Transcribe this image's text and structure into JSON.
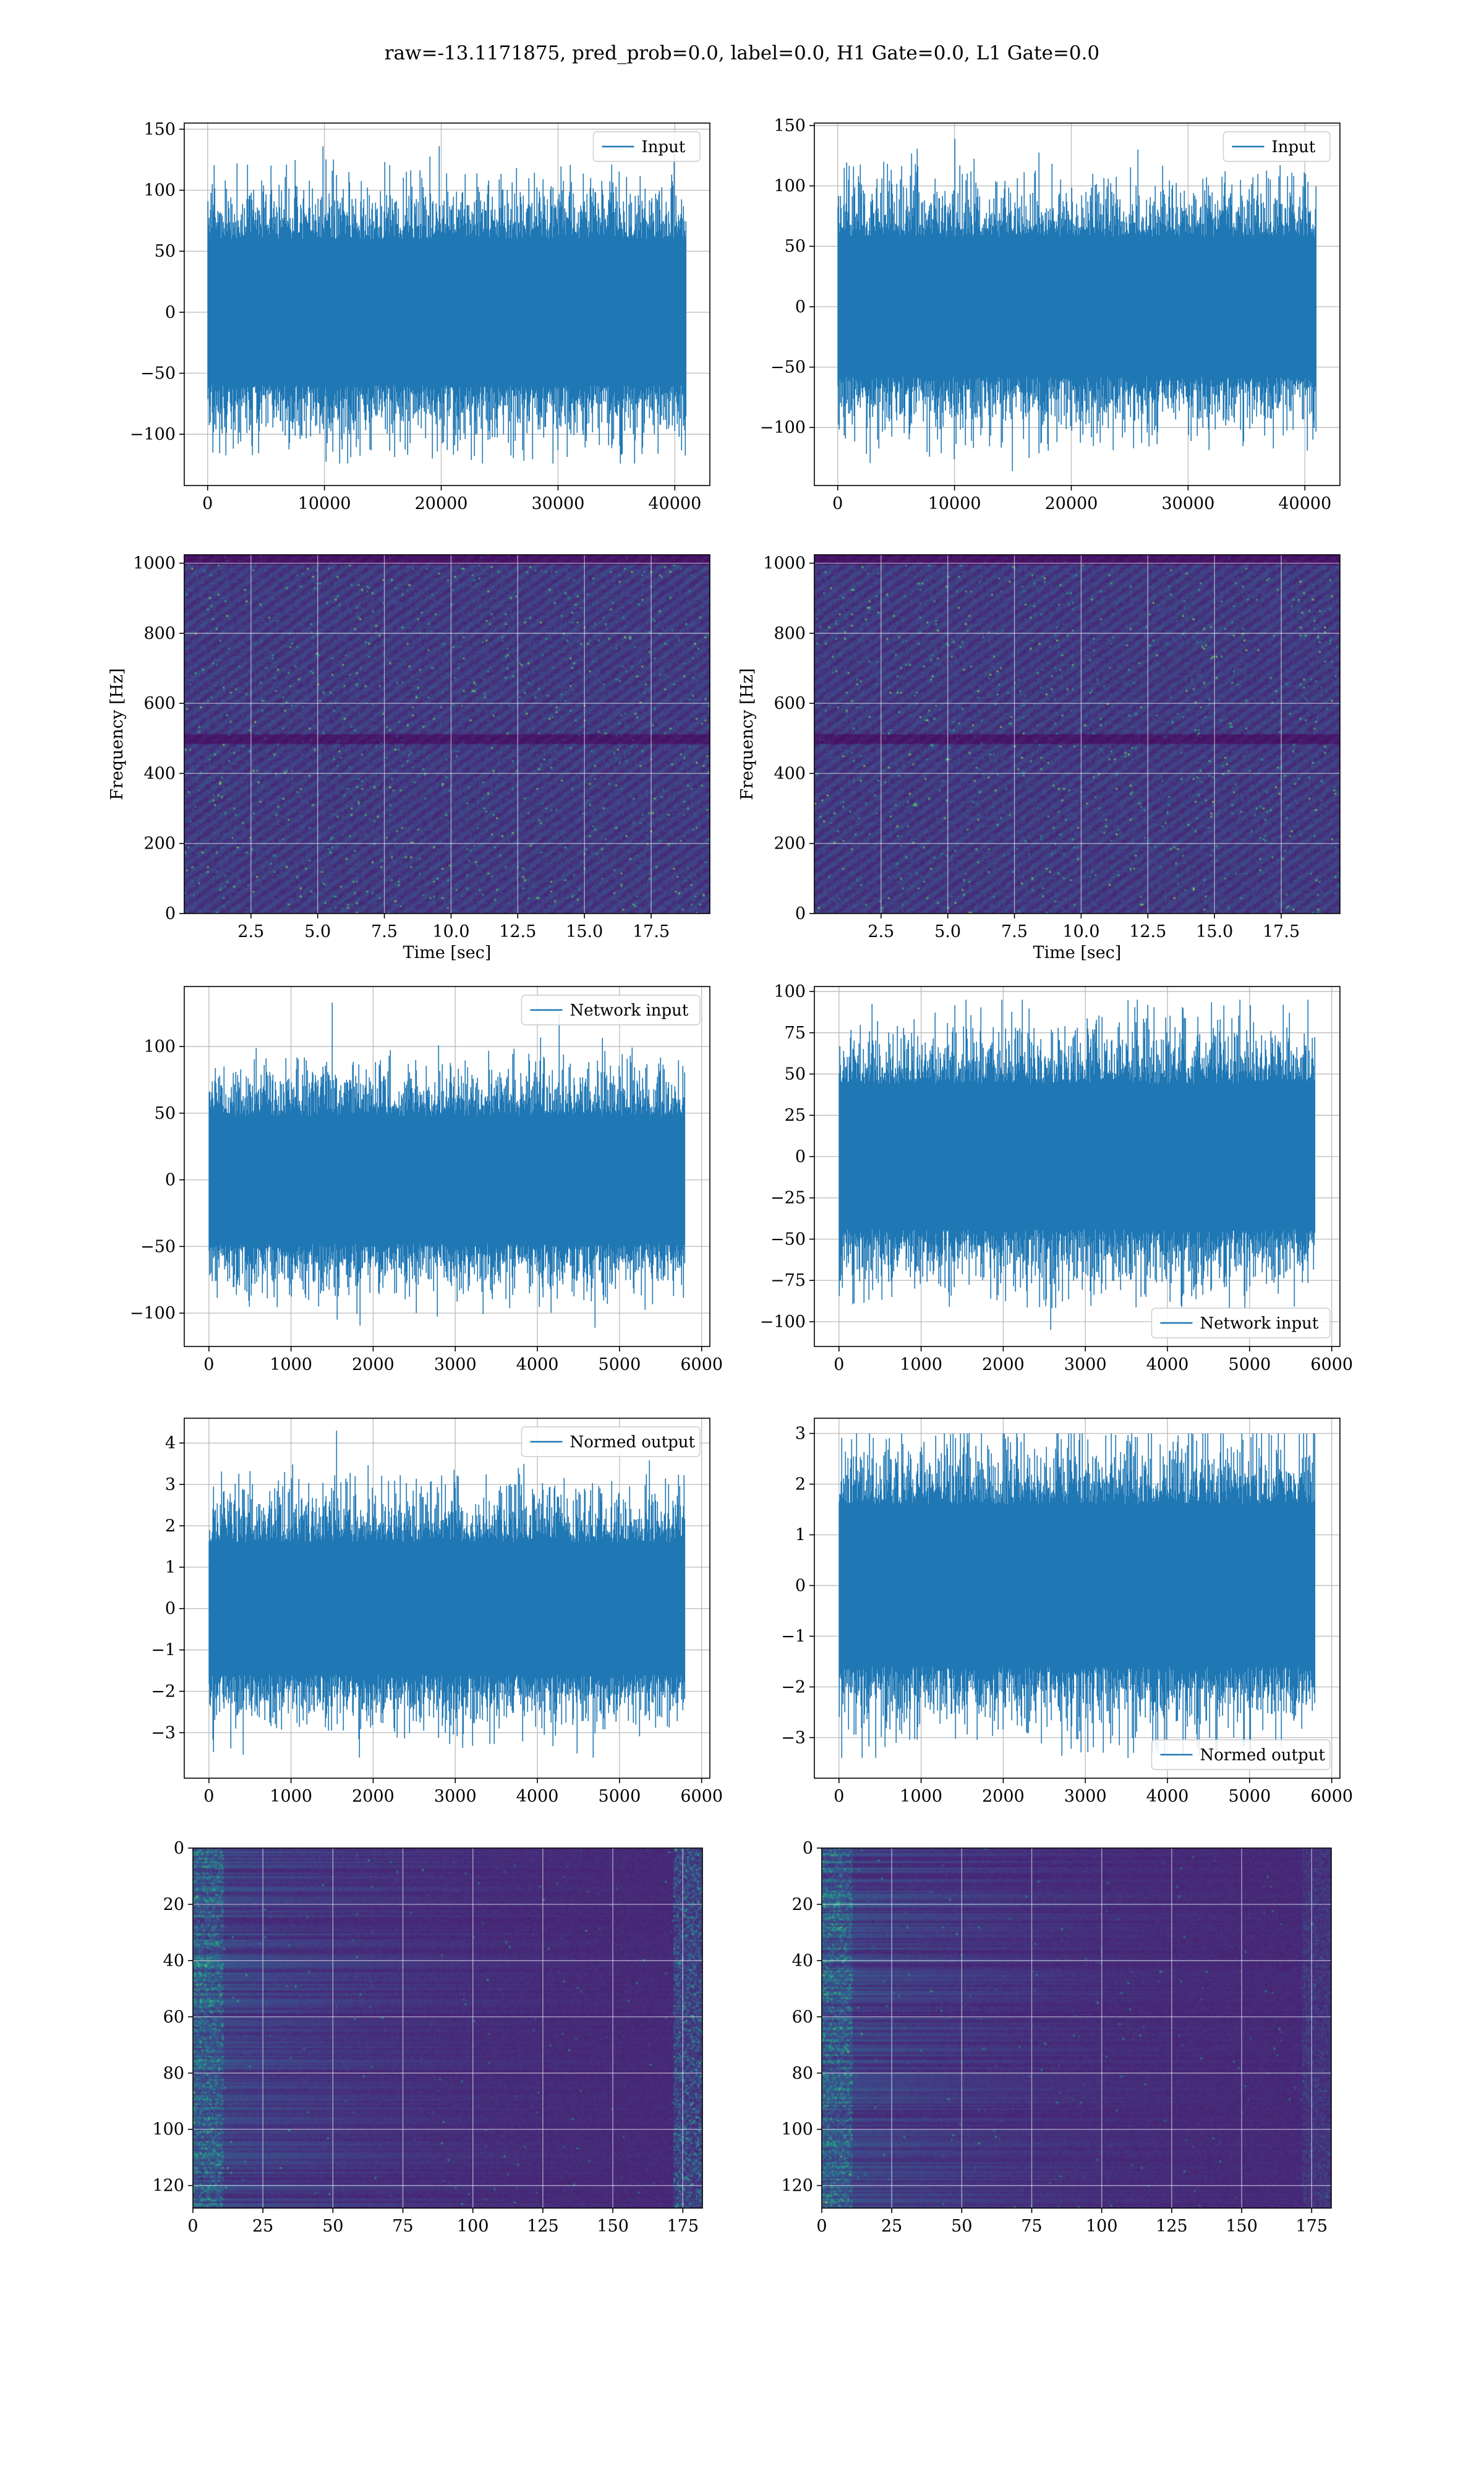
{
  "figure": {
    "suptitle": "raw=-13.1171875, pred_prob=0.0, label=0.0, H1 Gate=0.0, L1 Gate=0.0"
  },
  "chart_data": [
    {
      "id": "p00",
      "type": "line",
      "seed": 11,
      "series": [
        {
          "name": "Input",
          "color": "#1f77b4",
          "n": 40960,
          "sigma": 30,
          "peak_max": 136,
          "peak_min": -124
        }
      ],
      "xlim": [
        -2000,
        43000
      ],
      "ylim": [
        -142,
        155
      ],
      "xticks": [
        0,
        10000,
        20000,
        30000,
        40000
      ],
      "yticks": [
        -100,
        -50,
        0,
        50,
        100,
        150
      ],
      "xlabel": "",
      "ylabel": "",
      "grid": true,
      "legend": "top-right"
    },
    {
      "id": "p01",
      "type": "line",
      "seed": 23,
      "series": [
        {
          "name": "Input",
          "color": "#1f77b4",
          "n": 40960,
          "sigma": 29,
          "peak_max": 139,
          "peak_min": -136
        }
      ],
      "xlim": [
        -2000,
        43000
      ],
      "ylim": [
        -148,
        152
      ],
      "xticks": [
        0,
        10000,
        20000,
        30000,
        40000
      ],
      "yticks": [
        -100,
        -50,
        0,
        50,
        100,
        150
      ],
      "xlabel": "",
      "ylabel": "",
      "grid": true,
      "legend": "top-right"
    },
    {
      "id": "p10",
      "type": "heatmap",
      "seed": 37,
      "colormap": "viridis",
      "extent": {
        "x": [
          0,
          19.7
        ],
        "y": [
          0,
          1024
        ]
      },
      "dark_band_y": 500,
      "xlim": [
        0,
        19.7
      ],
      "ylim": [
        0,
        1024
      ],
      "xticks": [
        2.5,
        5.0,
        7.5,
        10.0,
        12.5,
        15.0,
        17.5
      ],
      "yticks": [
        0,
        200,
        400,
        600,
        800,
        1000
      ],
      "xlabel": "Time [sec]",
      "ylabel": "Frequency [Hz]",
      "grid": true
    },
    {
      "id": "p11",
      "type": "heatmap",
      "seed": 53,
      "colormap": "viridis",
      "extent": {
        "x": [
          0,
          19.7
        ],
        "y": [
          0,
          1024
        ]
      },
      "dark_band_y": 500,
      "xlim": [
        0,
        19.7
      ],
      "ylim": [
        0,
        1024
      ],
      "xticks": [
        2.5,
        5.0,
        7.5,
        10.0,
        12.5,
        15.0,
        17.5
      ],
      "yticks": [
        0,
        200,
        400,
        600,
        800,
        1000
      ],
      "xlabel": "Time [sec]",
      "ylabel": "Frequency [Hz]",
      "grid": true
    },
    {
      "id": "p20",
      "type": "line",
      "seed": 61,
      "series": [
        {
          "name": "Network input",
          "color": "#1f77b4",
          "n": 5800,
          "sigma": 24,
          "peak_max": 133,
          "peak_min": -111
        }
      ],
      "xlim": [
        -300,
        6100
      ],
      "ylim": [
        -125,
        145
      ],
      "xticks": [
        0,
        1000,
        2000,
        3000,
        4000,
        5000,
        6000
      ],
      "yticks": [
        -100,
        -50,
        0,
        50,
        100
      ],
      "xlabel": "",
      "ylabel": "",
      "grid": true,
      "legend": "top-right"
    },
    {
      "id": "p21",
      "type": "line",
      "seed": 79,
      "series": [
        {
          "name": "Network input",
          "color": "#1f77b4",
          "n": 5800,
          "sigma": 22,
          "peak_max": 95,
          "peak_min": -105
        }
      ],
      "xlim": [
        -300,
        6100
      ],
      "ylim": [
        -115,
        103
      ],
      "xticks": [
        0,
        1000,
        2000,
        3000,
        4000,
        5000,
        6000
      ],
      "yticks": [
        -100,
        -75,
        -50,
        -25,
        0,
        25,
        50,
        75,
        100
      ],
      "xlabel": "",
      "ylabel": "",
      "grid": true,
      "legend": "bottom-right"
    },
    {
      "id": "p30",
      "type": "line",
      "seed": 83,
      "series": [
        {
          "name": "Normed output",
          "color": "#1f77b4",
          "n": 5800,
          "sigma": 0.8,
          "peak_max": 4.3,
          "peak_min": -3.6
        }
      ],
      "xlim": [
        -300,
        6100
      ],
      "ylim": [
        -4.1,
        4.6
      ],
      "xticks": [
        0,
        1000,
        2000,
        3000,
        4000,
        5000,
        6000
      ],
      "yticks": [
        -3,
        -2,
        -1,
        0,
        1,
        2,
        3,
        4
      ],
      "xlabel": "",
      "ylabel": "",
      "grid": true,
      "legend": "top-right"
    },
    {
      "id": "p31",
      "type": "line",
      "seed": 97,
      "series": [
        {
          "name": "Normed output",
          "color": "#1f77b4",
          "n": 5800,
          "sigma": 0.8,
          "peak_max": 3.0,
          "peak_min": -3.4
        }
      ],
      "xlim": [
        -300,
        6100
      ],
      "ylim": [
        -3.8,
        3.3
      ],
      "xticks": [
        0,
        1000,
        2000,
        3000,
        4000,
        5000,
        6000
      ],
      "yticks": [
        -3,
        -2,
        -1,
        0,
        1,
        2,
        3
      ],
      "xlabel": "",
      "ylabel": "",
      "grid": true,
      "legend": "bottom-right"
    },
    {
      "id": "p40",
      "type": "heatmap",
      "seed": 101,
      "colormap": "viridis",
      "extent": {
        "x": [
          0,
          182
        ],
        "y": [
          0,
          128
        ]
      },
      "xlim": [
        0,
        182
      ],
      "ylim": [
        128,
        0
      ],
      "xticks": [
        0,
        25,
        50,
        75,
        100,
        125,
        150,
        175
      ],
      "yticks": [
        0,
        20,
        40,
        60,
        80,
        100,
        120
      ],
      "xlabel": "",
      "ylabel": "",
      "grid": true
    },
    {
      "id": "p41",
      "type": "heatmap",
      "seed": 113,
      "colormap": "viridis",
      "extent": {
        "x": [
          0,
          182
        ],
        "y": [
          0,
          128
        ]
      },
      "xlim": [
        0,
        182
      ],
      "ylim": [
        128,
        0
      ],
      "xticks": [
        0,
        25,
        50,
        75,
        100,
        125,
        150,
        175
      ],
      "yticks": [
        0,
        20,
        40,
        60,
        80,
        100,
        120
      ],
      "xlabel": "",
      "ylabel": "",
      "grid": true
    }
  ]
}
